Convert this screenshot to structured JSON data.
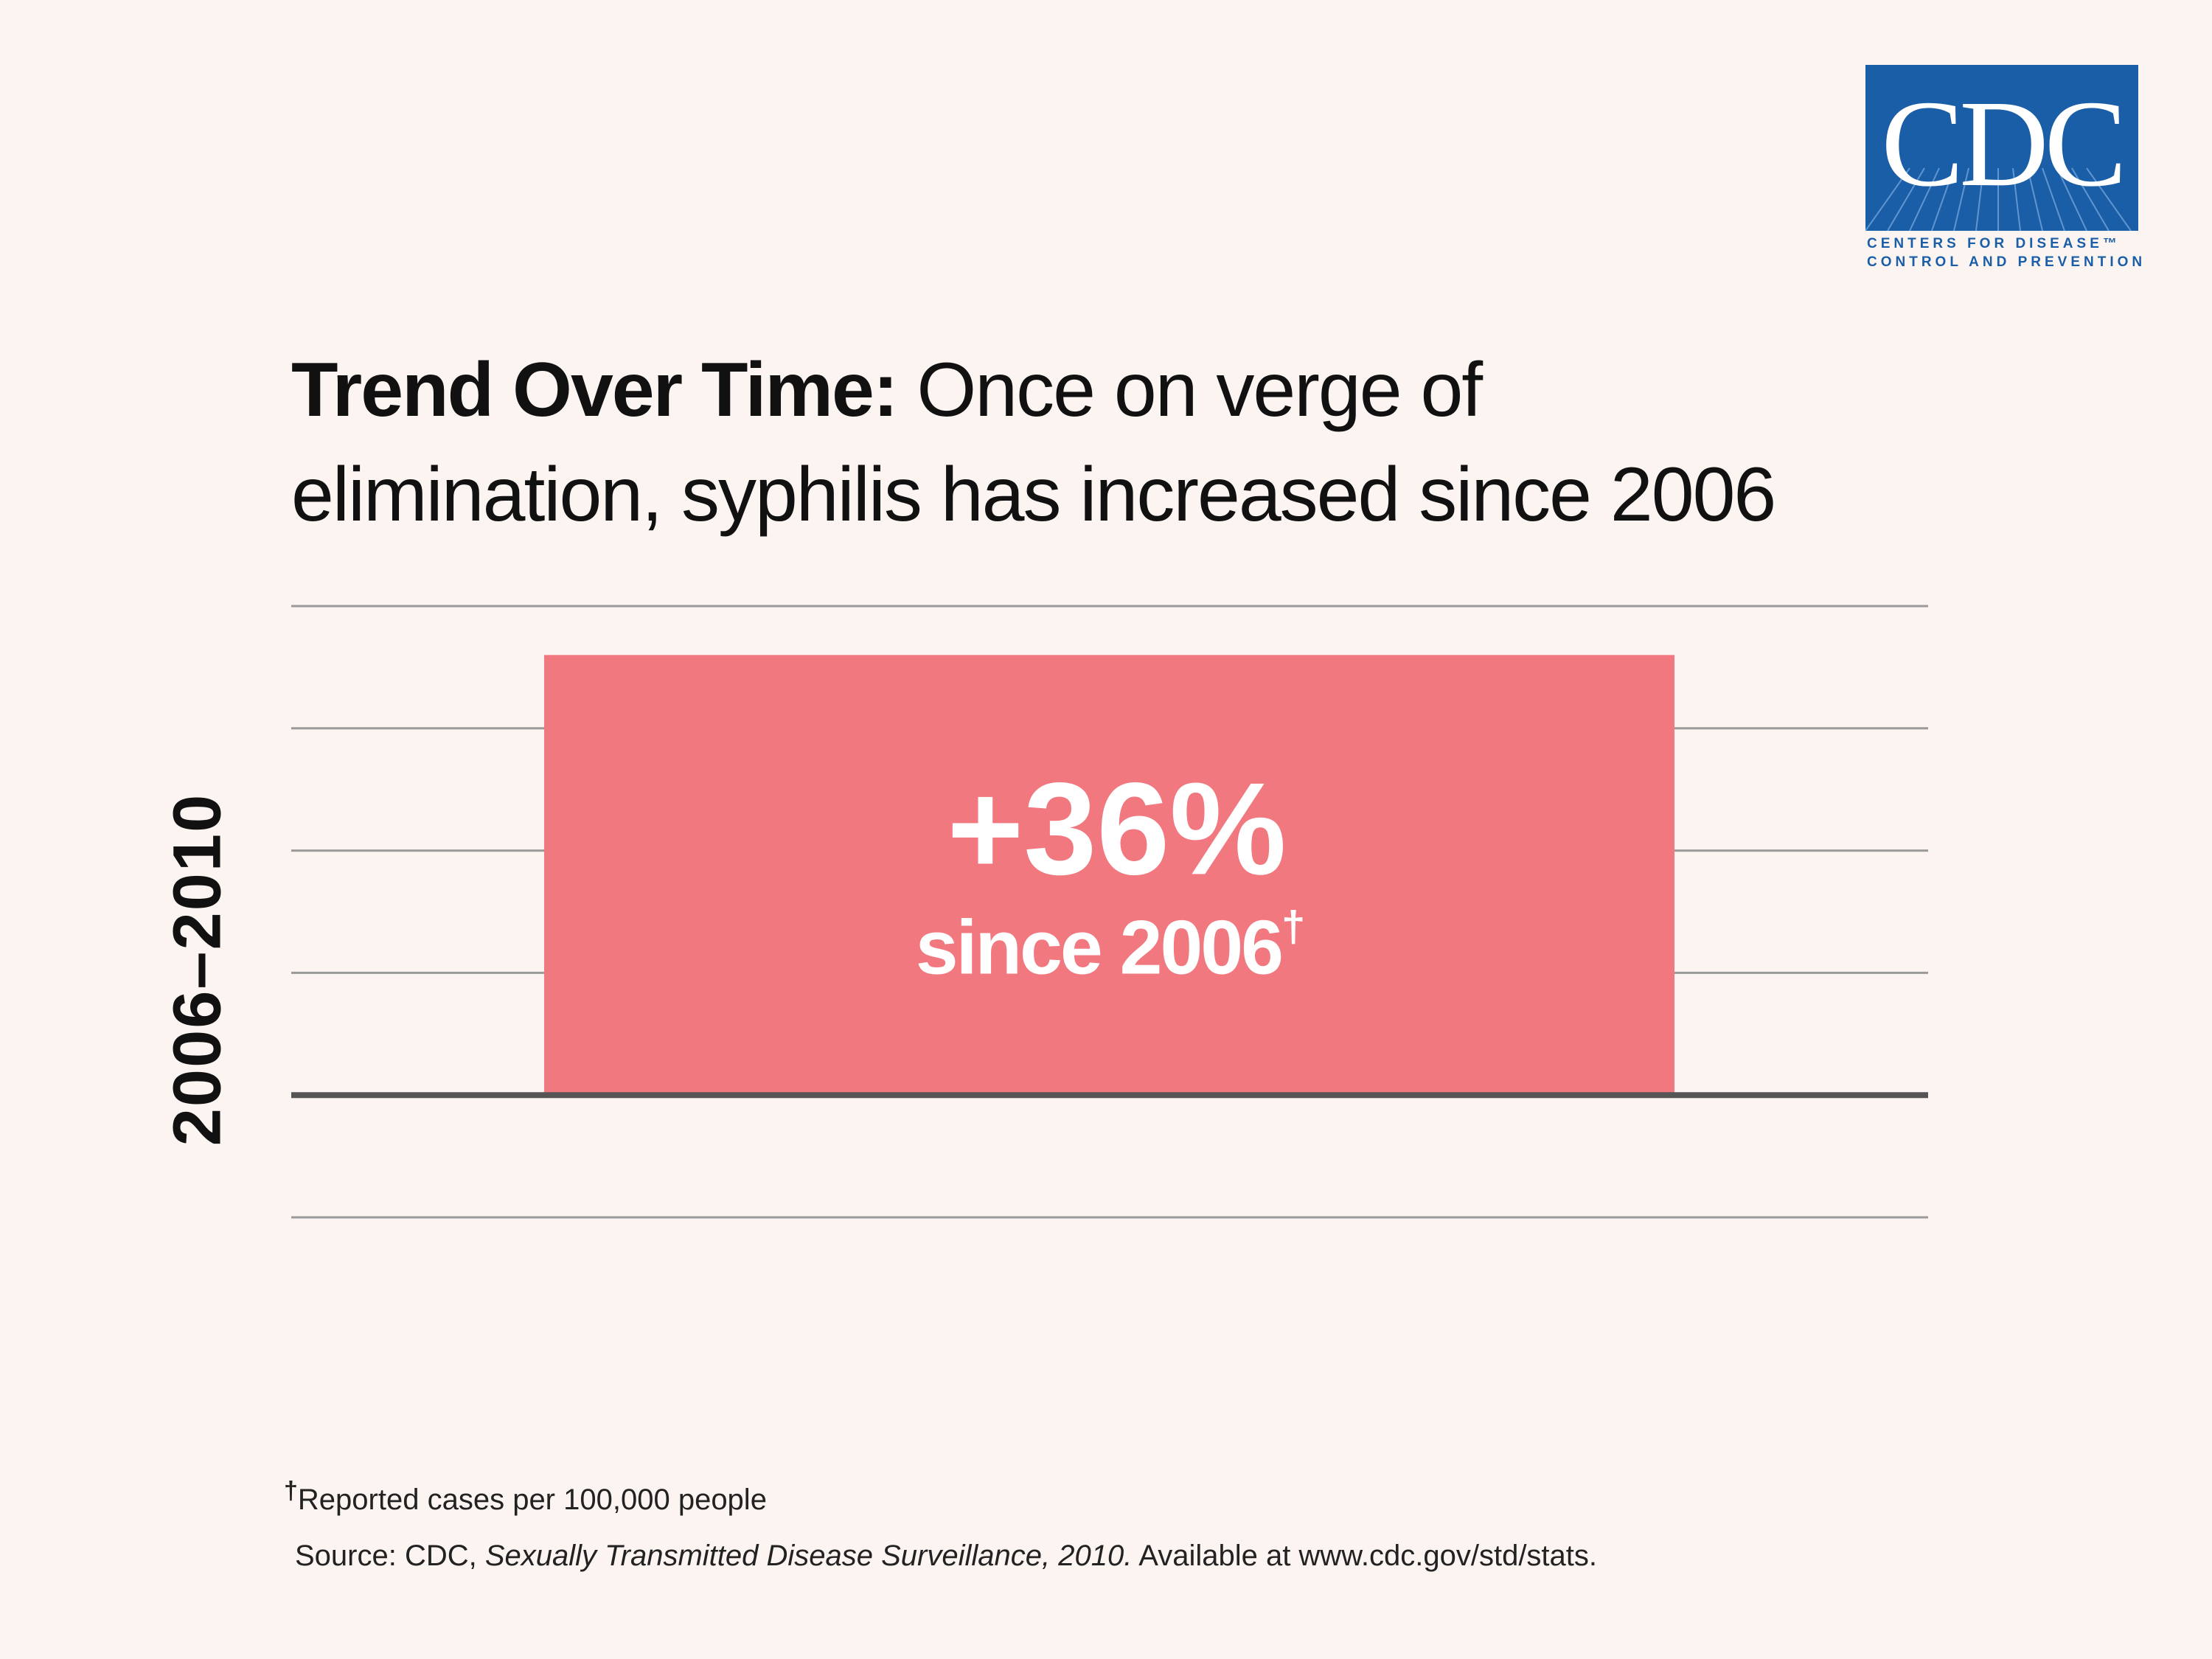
{
  "logo": {
    "name": "CDC",
    "line1": "CENTERS FOR DISEASE™",
    "line2": "CONTROL AND PREVENTION"
  },
  "title": {
    "bold": "Trend Over Time:",
    "rest_line1": " Once on verge of",
    "line2": "elimination,  syphilis has increased since 2006"
  },
  "chart_data": {
    "type": "bar",
    "categories": [
      "2006–2010"
    ],
    "values": [
      36
    ],
    "value_label": "+36%",
    "value_sublabel": "since 2006",
    "value_sublabel_mark": "†",
    "ylabel": "2006–2010",
    "ylim": [
      -10,
      40
    ],
    "gridlines": [
      -10,
      10,
      20,
      30,
      40
    ],
    "baseline": 0,
    "bar_color": "#f27880"
  },
  "footnote": {
    "mark": "†",
    "text": "Reported cases per 100,000 people"
  },
  "source": {
    "prefix": "Source:  CDC, ",
    "italic": "Sexually Transmitted Disease Surveillance, 2010.",
    "suffix": "  Available at www.cdc.gov/std/stats."
  }
}
